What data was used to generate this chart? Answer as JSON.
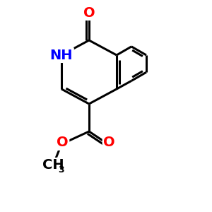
{
  "bg_color": "#ffffff",
  "atom_color_black": "#000000",
  "atom_color_red": "#ff0000",
  "atom_color_blue": "#0000ff",
  "bond_width": 2.2,
  "font_size_atoms": 14,
  "font_size_small": 9,
  "xlim": [
    0,
    10
  ],
  "ylim": [
    0,
    10
  ],
  "figsize": [
    3.0,
    3.0
  ],
  "dpi": 100
}
